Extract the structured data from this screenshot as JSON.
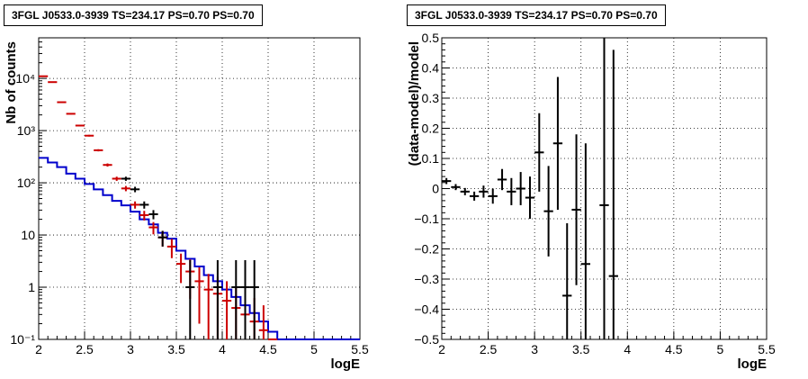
{
  "chart_data": [
    {
      "type": "step-errorbar",
      "title": "3FGL J0533.0-3939 TS=234.17 PS=0.70 PS=0.70",
      "xlabel": "logE",
      "ylabel": "Nb of counts",
      "xlim": [
        2,
        5.5
      ],
      "ylim": [
        0.1,
        60000
      ],
      "yscale": "log",
      "grid": true,
      "xticks": [
        "2",
        "2.5",
        "3",
        "3.5",
        "4",
        "4.5",
        "5",
        "5.5"
      ],
      "yticks": [
        "10⁻¹",
        "1",
        "10",
        "10²",
        "10³",
        "10⁴"
      ],
      "bin_width": 0.1,
      "series": [
        {
          "color": "#0000cc",
          "style": "step",
          "x": [
            2.05,
            2.15,
            2.25,
            2.35,
            2.45,
            2.55,
            2.65,
            2.75,
            2.85,
            2.95,
            3.05,
            3.15,
            3.25,
            3.35,
            3.45,
            3.55,
            3.65,
            3.75,
            3.85,
            3.95,
            4.05,
            4.15,
            4.25,
            4.35,
            4.45,
            4.55,
            4.65,
            4.75,
            4.85,
            4.95,
            5.05,
            5.15,
            5.25,
            5.35,
            5.45
          ],
          "y": [
            300,
            245,
            200,
            150,
            120,
            95,
            75,
            58,
            45,
            37,
            28,
            20,
            16,
            11,
            8.5,
            5,
            3.5,
            2.5,
            1.7,
            1.3,
            0.9,
            0.65,
            0.45,
            0.32,
            0.22,
            0.14,
            0.1,
            0.1,
            0.1,
            0.1,
            0.1,
            0.1,
            0.1,
            0.1,
            0.1
          ]
        },
        {
          "color": "#cc0000",
          "style": "errorbar",
          "x": [
            2.05,
            2.15,
            2.25,
            2.35,
            2.45,
            2.55,
            2.65,
            2.75,
            2.85,
            2.95,
            3.05,
            3.15,
            3.25,
            3.35,
            3.45,
            3.55,
            3.65,
            3.75,
            3.85,
            3.95,
            4.05,
            4.15,
            4.25,
            4.35,
            4.45,
            4.55
          ],
          "y": [
            11000,
            8500,
            3500,
            2100,
            1250,
            800,
            420,
            220,
            120,
            78,
            38,
            24,
            14,
            9,
            6,
            2.8,
            2,
            1.3,
            0.9,
            0.75,
            0.55,
            0.4,
            0.3,
            0.22,
            0.15,
            0.1
          ],
          "err_lo": [
            200,
            150,
            80,
            60,
            40,
            30,
            20,
            15,
            11,
            9,
            6,
            5,
            3.7,
            3,
            2.4,
            1.6,
            1.4,
            1.1,
            0.9,
            0.72,
            0.52,
            0.35,
            0.23,
            0.16,
            0.1,
            0
          ],
          "err_hi": [
            200,
            150,
            80,
            60,
            40,
            30,
            20,
            15,
            11,
            9,
            6,
            5,
            3.7,
            3,
            2.4,
            1.6,
            1.4,
            1.1,
            0.9,
            0.85,
            0.75,
            0.6,
            0.5,
            0.4,
            0.3,
            0
          ]
        },
        {
          "color": "#000000",
          "style": "errorbar",
          "x": [
            2.95,
            3.05,
            3.15,
            3.25,
            3.35,
            3.65,
            3.95,
            4.15,
            4.25,
            4.35
          ],
          "y": [
            120,
            75,
            38,
            25,
            9,
            1,
            1,
            1,
            1,
            1
          ],
          "err_lo": [
            11,
            9,
            6,
            5,
            3,
            0.95,
            0.95,
            0.95,
            0.95,
            0.95
          ],
          "err_hi": [
            11,
            9,
            6,
            5,
            3,
            2.3,
            2.3,
            2.3,
            2.3,
            2.3
          ]
        }
      ]
    },
    {
      "type": "errorbar",
      "title": "3FGL J0533.0-3939 TS=234.17 PS=0.70 PS=0.70",
      "xlabel": "logE",
      "ylabel": "(data-model)/model",
      "xlim": [
        2,
        5.5
      ],
      "ylim": [
        -0.5,
        0.5
      ],
      "grid": true,
      "xticks": [
        "2",
        "2.5",
        "3",
        "3.5",
        "4",
        "4.5",
        "5",
        "5.5"
      ],
      "yticks": [
        "−0.5",
        "−0.4",
        "−0.3",
        "−0.2",
        "−0.1",
        "0",
        "0.1",
        "0.2",
        "0.3",
        "0.4",
        "0.5"
      ],
      "bin_width": 0.1,
      "series": [
        {
          "color": "#000000",
          "x": [
            2.05,
            2.15,
            2.25,
            2.35,
            2.45,
            2.55,
            2.65,
            2.75,
            2.85,
            2.95,
            3.05,
            3.15,
            3.25,
            3.35,
            3.45,
            3.55,
            3.75,
            3.85
          ],
          "y": [
            0.025,
            0.005,
            -0.01,
            -0.025,
            -0.01,
            -0.025,
            0.03,
            -0.01,
            0.0,
            -0.03,
            0.12,
            -0.075,
            0.15,
            -0.355,
            -0.07,
            -0.25,
            -0.055,
            -0.29
          ],
          "err": [
            0.01,
            0.01,
            0.012,
            0.015,
            0.02,
            0.025,
            0.035,
            0.045,
            0.055,
            0.07,
            0.13,
            0.15,
            0.22,
            0.24,
            0.25,
            0.4,
            0.6,
            0.75
          ]
        }
      ]
    }
  ]
}
